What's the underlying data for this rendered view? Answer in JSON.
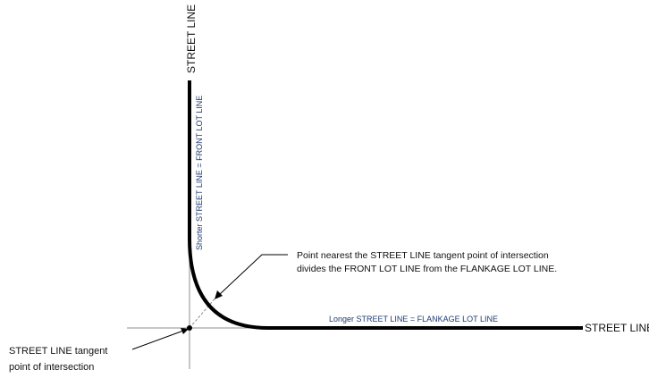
{
  "diagram": {
    "street_line_vertical_label": "STREET LINE",
    "street_line_horizontal_label": "STREET LINE",
    "shorter_line_label": "Shorter STREET LINE = FRONT LOT LINE",
    "longer_line_label": "Longer STREET LINE = FLANKAGE LOT LINE",
    "callout_point_nearest_line1": "Point nearest the STREET LINE tangent point of intersection",
    "callout_point_nearest_line2": "divides the FRONT LOT LINE from the FLANKAGE LOT LINE.",
    "callout_tangent_line1": "STREET LINE tangent",
    "callout_tangent_line2": "point of intersection"
  },
  "colors": {
    "line": "#000000",
    "guide": "#888888",
    "label_blue": "#1f3b73"
  }
}
